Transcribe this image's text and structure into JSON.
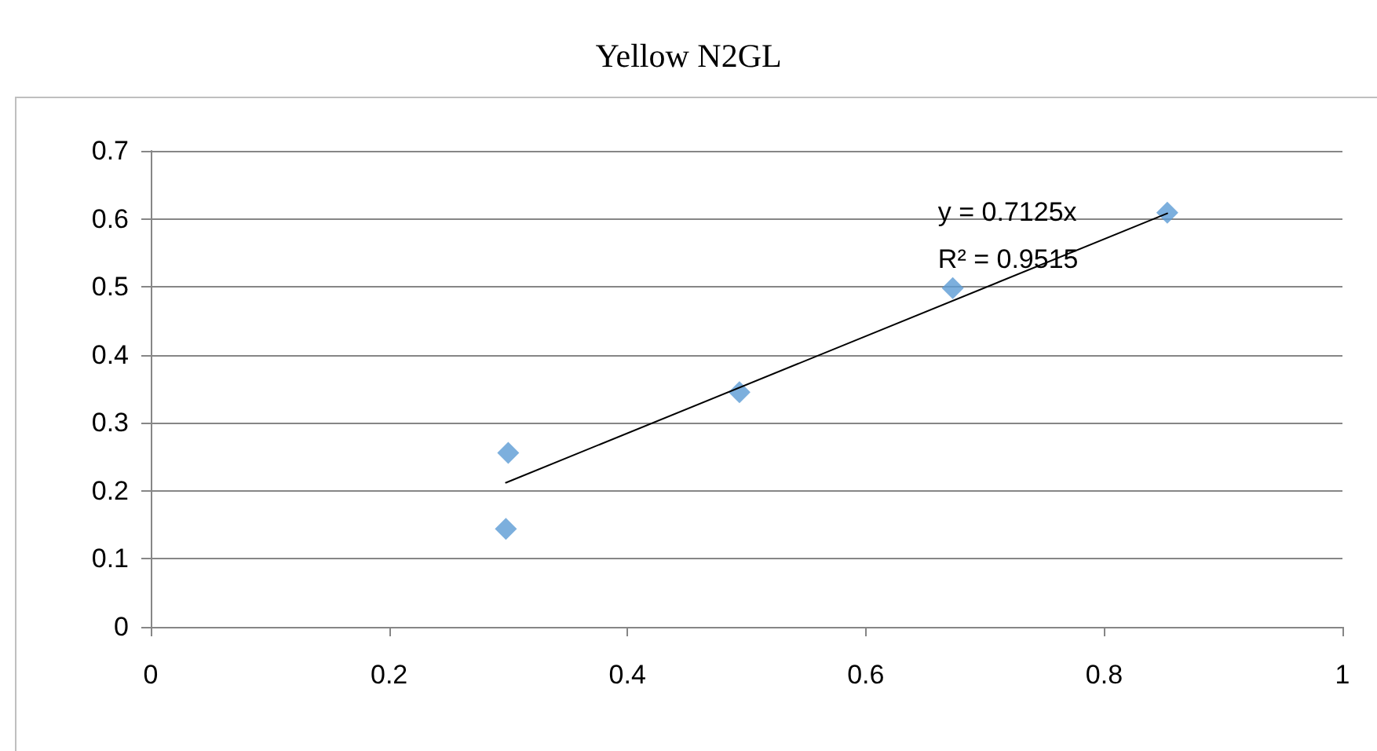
{
  "chart_data": {
    "type": "scatter",
    "title": "Yellow N2GL",
    "series": [
      {
        "color": "#5b9bd5",
        "marker": "diamond",
        "x": [
          0.3,
          0.298,
          0.494,
          0.673,
          0.853
        ],
        "values": [
          0.256,
          0.144,
          0.345,
          0.498,
          0.609
        ]
      },
      {
        "type": "line",
        "color": "#000000",
        "marker": "none",
        "x": [
          0.298,
          0.853
        ],
        "values": [
          0.212,
          0.608
        ]
      }
    ],
    "annotations": [
      "y = 0.7125x",
      "R² = 0.9515"
    ],
    "xlim": [
      0,
      1
    ],
    "xticks": [
      0,
      0.2,
      0.4,
      0.6,
      0.8,
      1
    ],
    "ylim": [
      0,
      0.7
    ],
    "yticks": [
      0,
      0.1,
      0.2,
      0.3,
      0.4,
      0.5,
      0.6,
      0.7
    ],
    "grid": "y"
  }
}
